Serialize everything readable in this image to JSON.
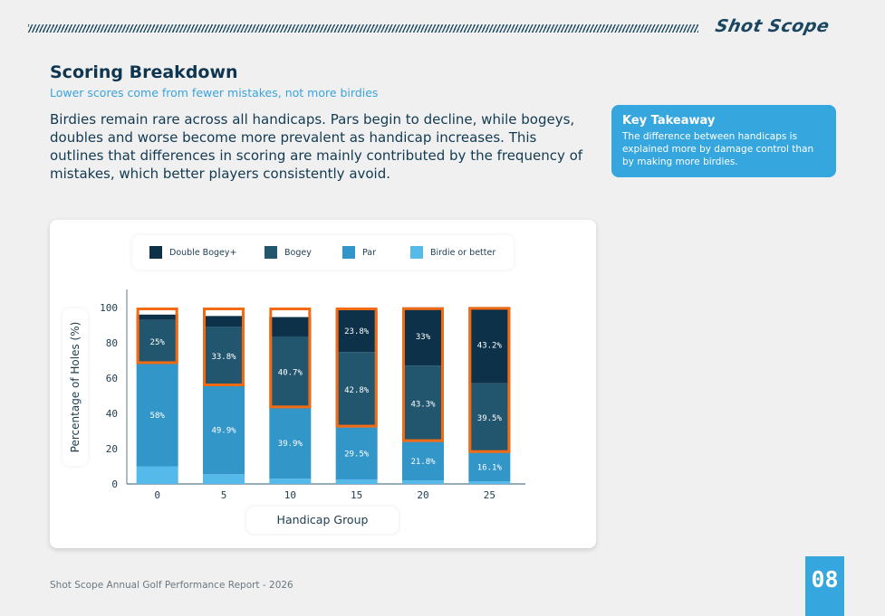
{
  "header": {
    "logo": "Shot Scope"
  },
  "title": "Scoring Breakdown",
  "subtitle": "Lower scores come from fewer mistakes, not more birdies",
  "body": "Birdies remain rare across all handicaps. Pars begin to decline, while bogeys, doubles and worse become more prevalent as handicap increases. This outlines that differences in scoring are mainly contributed by the frequency of mistakes, which better players consistently avoid.",
  "takeaway": {
    "title": "Key Takeaway",
    "text": "The difference between handicaps is explained more by damage control than by making more birdies."
  },
  "footer": {
    "text": "Shot Scope Annual Golf Performance Report - 2026",
    "page": "08"
  },
  "colors": {
    "double": "#0c3149",
    "bogey": "#22566f",
    "par": "#3396c9",
    "birdie": "#55b9ea",
    "highlight": "#f26a12"
  },
  "chart_data": {
    "type": "bar",
    "stacked": true,
    "categories": [
      "0",
      "5",
      "10",
      "15",
      "20",
      "25"
    ],
    "xlabel": "Handicap Group",
    "ylabel": "Percentage of Holes (%)",
    "ylim": [
      0,
      100
    ],
    "yticks": [
      0,
      20,
      40,
      60,
      80,
      100
    ],
    "legend_position": "top",
    "series": [
      {
        "name": "Birdie or better",
        "key": "birdie",
        "values": [
          10,
          5.5,
          3,
          2.5,
          2,
          1.5
        ],
        "labels": [
          "",
          "",
          "",
          "",
          "",
          ""
        ]
      },
      {
        "name": "Par",
        "key": "par",
        "values": [
          58,
          49.9,
          39.9,
          29.5,
          21.8,
          16.1
        ],
        "labels": [
          "58%",
          "49.9%",
          "39.9%",
          "29.5%",
          "21.8%",
          "16.1%"
        ]
      },
      {
        "name": "Bogey",
        "key": "bogey",
        "values": [
          25,
          33.8,
          40.7,
          42.8,
          43.3,
          39.5
        ],
        "labels": [
          "25%",
          "33.8%",
          "40.7%",
          "42.8%",
          "43.3%",
          "39.5%"
        ]
      },
      {
        "name": "Double Bogey+",
        "key": "double",
        "values": [
          3,
          6,
          11,
          23.8,
          33,
          43.2
        ],
        "labels": [
          "",
          "",
          "",
          "23.8%",
          "33%",
          "43.2%"
        ]
      }
    ],
    "legend": [
      "Double Bogey+",
      "Bogey",
      "Par",
      "Birdie or better"
    ],
    "highlight": "Bogey and Double Bogey+ segments outlined in orange"
  }
}
